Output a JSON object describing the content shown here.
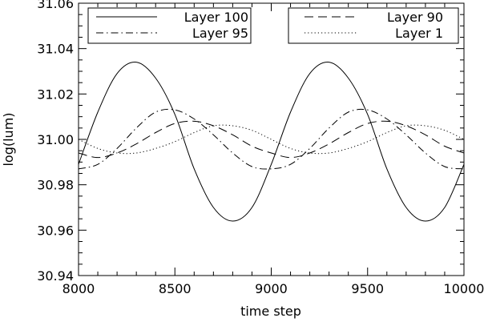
{
  "chart_data": {
    "type": "line",
    "xlabel": "time step",
    "ylabel": "log(lum)",
    "xlim": [
      8000,
      10000
    ],
    "ylim": [
      30.94,
      31.06
    ],
    "x_ticks": [
      8000,
      8500,
      9000,
      9500,
      10000
    ],
    "x_tick_labels": [
      "8000",
      "8500",
      "9000",
      "9500",
      "10000"
    ],
    "y_ticks": [
      30.94,
      30.96,
      30.98,
      31.0,
      31.02,
      31.04,
      31.06
    ],
    "y_tick_labels": [
      "30.94",
      "30.96",
      "30.98",
      "31.00",
      "31.02",
      "31.04",
      "31.06"
    ],
    "grid": false,
    "legend_placement": "top, two boxes",
    "x": [
      8000,
      8100,
      8200,
      8300,
      8400,
      8500,
      8600,
      8700,
      8800,
      8900,
      9000,
      9100,
      9200,
      9300,
      9400,
      9500,
      9600,
      9700,
      9800,
      9900,
      10000
    ],
    "series": [
      {
        "name": "Layer 100",
        "style": "solid",
        "values": [
          30.989,
          31.012,
          31.029,
          31.034,
          31.027,
          31.011,
          30.987,
          30.97,
          30.964,
          30.97,
          30.989,
          31.012,
          31.029,
          31.034,
          31.027,
          31.011,
          30.987,
          30.97,
          30.964,
          30.97,
          30.989
        ]
      },
      {
        "name": "Layer 95",
        "style": "dash-dot",
        "values": [
          30.987,
          30.989,
          30.996,
          31.005,
          31.012,
          31.013,
          31.009,
          31.002,
          30.994,
          30.988,
          30.987,
          30.989,
          30.996,
          31.005,
          31.012,
          31.013,
          31.009,
          31.002,
          30.994,
          30.988,
          30.987
        ]
      },
      {
        "name": "Layer 90",
        "style": "dashed",
        "values": [
          30.994,
          30.992,
          30.994,
          30.998,
          31.003,
          31.007,
          31.008,
          31.006,
          31.002,
          30.997,
          30.994,
          30.992,
          30.994,
          30.998,
          31.003,
          31.007,
          31.008,
          31.006,
          31.002,
          30.997,
          30.994
        ]
      },
      {
        "name": "Layer 1",
        "style": "dotted",
        "values": [
          31.0,
          30.996,
          30.994,
          30.994,
          30.996,
          30.999,
          31.003,
          31.006,
          31.006,
          31.004,
          31.0,
          30.996,
          30.994,
          30.994,
          30.996,
          30.999,
          31.003,
          31.006,
          31.006,
          31.004,
          31.0
        ]
      }
    ]
  }
}
